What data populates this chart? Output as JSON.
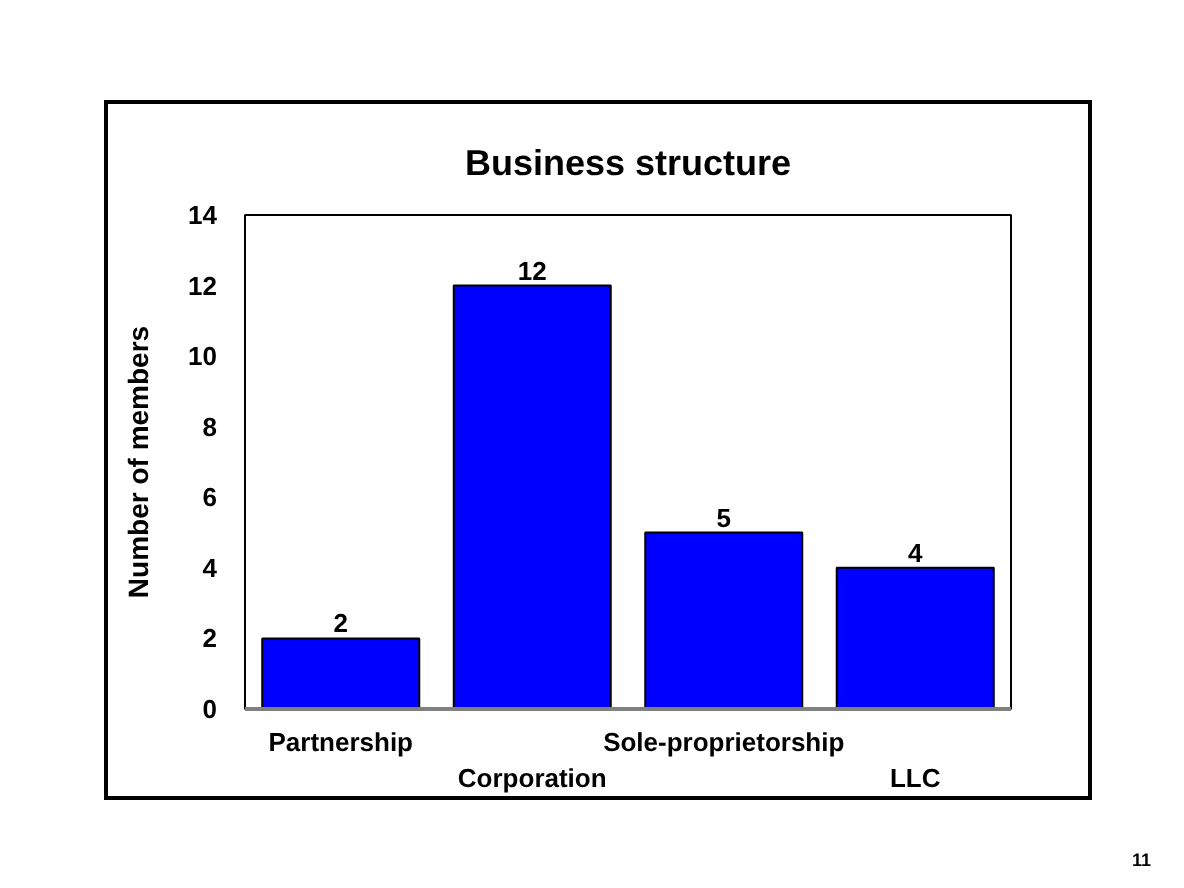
{
  "chart_data": {
    "type": "bar",
    "title": "Business structure",
    "ylabel": "Number of members",
    "categories": [
      "Partnership",
      "Corporation",
      "Sole-proprietorship",
      "LLC"
    ],
    "values": [
      2,
      12,
      5,
      4
    ],
    "color": "#0000ff",
    "ylim": [
      0,
      14
    ],
    "yticks": [
      0,
      2,
      4,
      6,
      8,
      10,
      12,
      14
    ],
    "data_labels": true,
    "annotations": [
      "11"
    ]
  }
}
